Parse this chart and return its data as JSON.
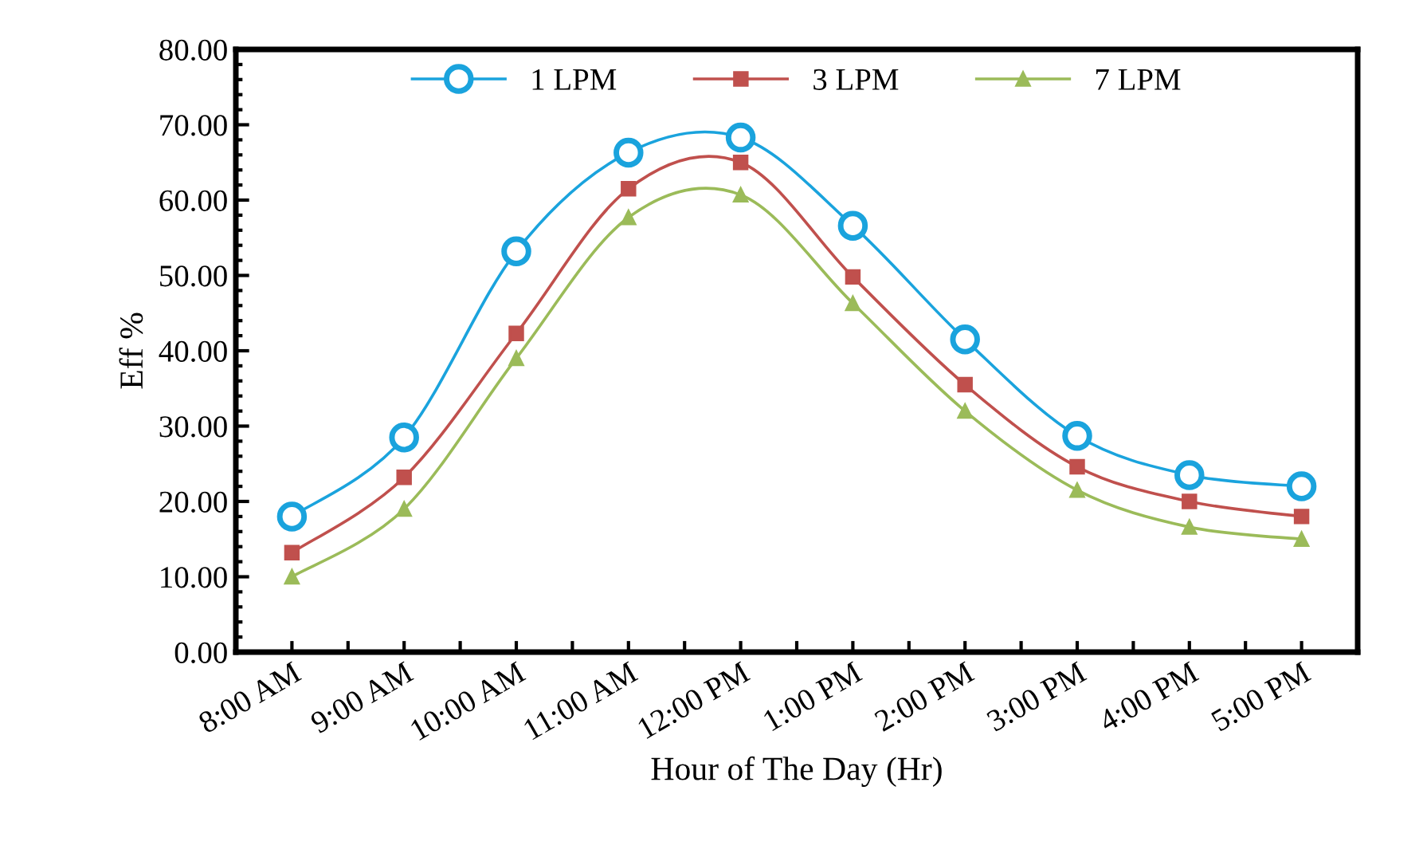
{
  "chart_data": {
    "type": "line",
    "xlabel": "Hour of The Day (Hr)",
    "ylabel": "Eff %",
    "categories": [
      "8:00 AM",
      "9:00 AM",
      "10:00 AM",
      "11:00 AM",
      "12:00 PM",
      "1:00 PM",
      "2:00 PM",
      "3:00 PM",
      "4:00 PM",
      "5:00 PM"
    ],
    "series": [
      {
        "name": "1 LPM",
        "color": "#1aa3dd",
        "marker": "circle",
        "values": [
          18.0,
          28.5,
          53.2,
          66.3,
          68.3,
          56.6,
          41.5,
          28.7,
          23.5,
          22.0
        ]
      },
      {
        "name": "3 LPM",
        "color": "#c0504d",
        "marker": "square",
        "values": [
          13.2,
          23.2,
          42.3,
          61.5,
          65.0,
          49.8,
          35.5,
          24.6,
          20.0,
          18.0
        ]
      },
      {
        "name": "7 LPM",
        "color": "#9bbb59",
        "marker": "triangle",
        "values": [
          10.0,
          19.0,
          39.0,
          57.7,
          60.7,
          46.3,
          32.0,
          21.5,
          16.6,
          15.0
        ]
      }
    ],
    "ylim": [
      0,
      80
    ],
    "yticks": [
      {
        "value": 0,
        "label": "0.00"
      },
      {
        "value": 10,
        "label": "10.00"
      },
      {
        "value": 20,
        "label": "20.00"
      },
      {
        "value": 30,
        "label": "30.00"
      },
      {
        "value": 40,
        "label": "40.00"
      },
      {
        "value": 50,
        "label": "50.00"
      },
      {
        "value": 60,
        "label": "60.00"
      },
      {
        "value": 70,
        "label": "70.00"
      },
      {
        "value": 80,
        "label": "80.00"
      }
    ],
    "grid": false,
    "legend": "top",
    "line_style": "solid"
  }
}
